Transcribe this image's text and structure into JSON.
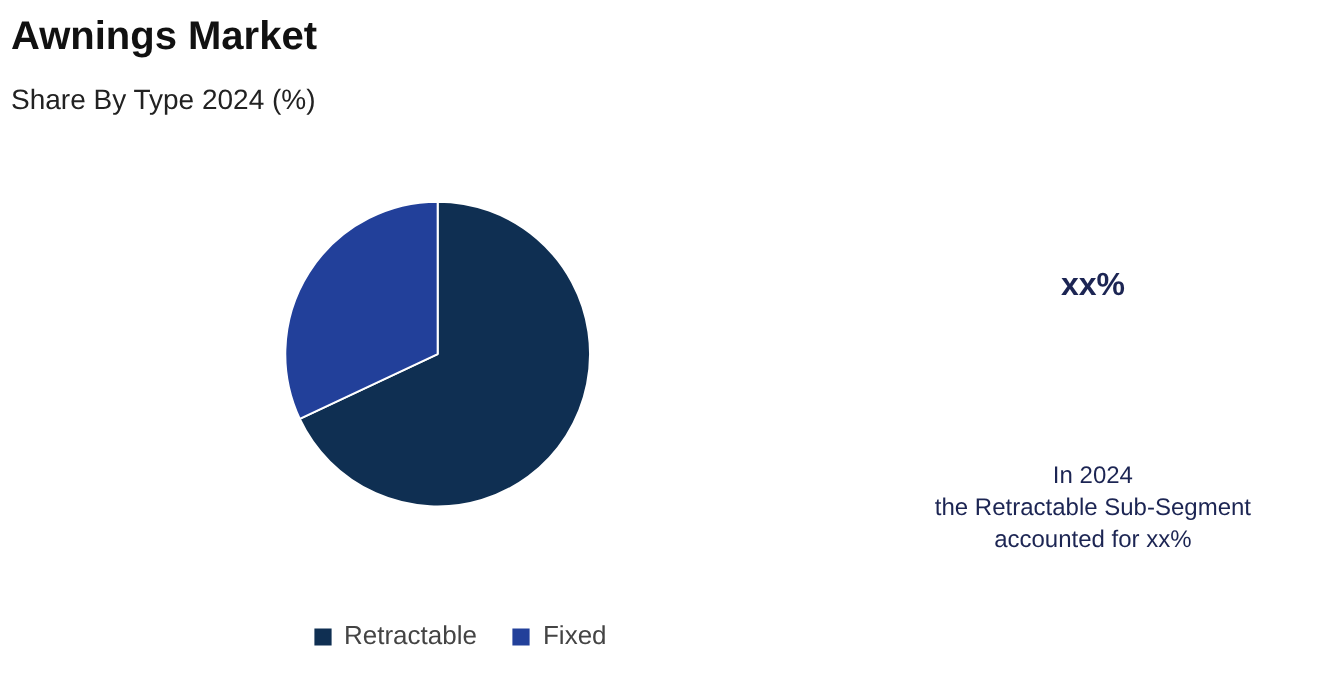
{
  "chart_data": {
    "type": "pie",
    "title": "Awnings Market",
    "subtitle": "Share By Type 2024 (%)",
    "categories": [
      "Retractable",
      "Fixed"
    ],
    "values": [
      68,
      32
    ],
    "colors": [
      "#0f2f52",
      "#22409a"
    ],
    "legend": "bottom",
    "annotations": [
      "xx%",
      "In 2024\nthe Retractable Sub-Segment\naccounted for xx%"
    ]
  }
}
